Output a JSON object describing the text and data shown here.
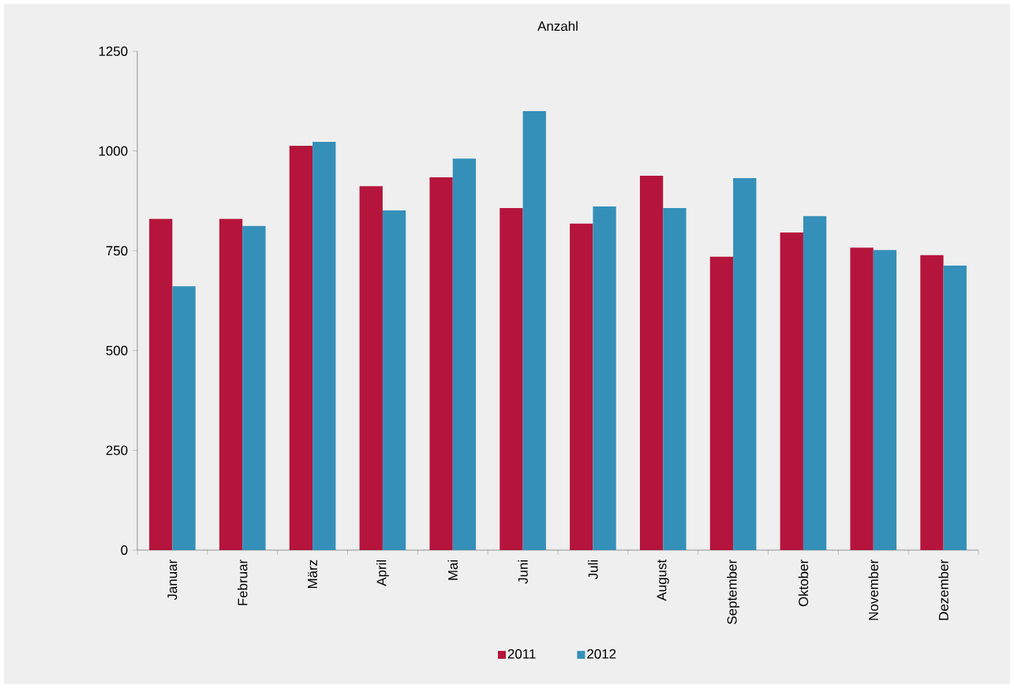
{
  "chart_data": {
    "type": "bar",
    "title": "Anzahl",
    "categories": [
      "Januar",
      "Februar",
      "März",
      "April",
      "Mai",
      "Juni",
      "Juli",
      "August",
      "September",
      "Oktober",
      "November",
      "Dezember"
    ],
    "series": [
      {
        "name": "2011",
        "color": "#b5153c",
        "values": [
          830,
          830,
          1013,
          912,
          934,
          857,
          818,
          938,
          735,
          796,
          758,
          739
        ]
      },
      {
        "name": "2012",
        "color": "#3490b9",
        "values": [
          661,
          812,
          1023,
          851,
          981,
          1100,
          861,
          857,
          932,
          837,
          752,
          713
        ]
      }
    ],
    "ylim": [
      0,
      1250
    ],
    "yticks": [
      0,
      250,
      500,
      750,
      1000,
      1250
    ],
    "grid": false,
    "legend": "bottom"
  }
}
